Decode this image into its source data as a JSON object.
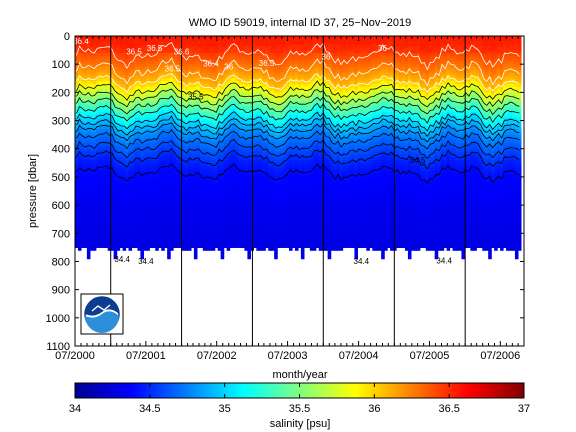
{
  "chart_data": {
    "type": "heatmap",
    "title": "WMO ID 59019, internal ID 37, 25−Nov−2019",
    "xlabel": "month/year",
    "ylabel": "pressure [dbar]",
    "x_ticks": [
      "07/2000",
      "07/2001",
      "07/2002",
      "07/2003",
      "07/2004",
      "07/2005",
      "07/2006"
    ],
    "x_range": [
      "2000-07-01",
      "2006-10-31"
    ],
    "y_ticks": [
      0,
      100,
      200,
      300,
      400,
      500,
      600,
      700,
      800,
      900,
      1000,
      1100
    ],
    "ylim": [
      1100,
      0
    ],
    "y_reversed": true,
    "colorbar": {
      "label": "salinity [psu]",
      "range": [
        34,
        37
      ],
      "ticks": [
        "34",
        "34.5",
        "35",
        "35.5",
        "36",
        "36.5",
        "37"
      ],
      "colormap": "jet"
    },
    "data_extent": {
      "x_start": "2000-07-01",
      "x_end": "2006-10-15",
      "max_pressure_dbar": 790
    },
    "vertical_markers": [
      "2001-01-01",
      "2002-01-01",
      "2003-01-01",
      "2004-01-01",
      "2005-01-01",
      "2006-01-01"
    ],
    "salinity_profile": [
      {
        "pressure": 0,
        "salinity": 36.55
      },
      {
        "pressure": 50,
        "salinity": 36.45
      },
      {
        "pressure": 100,
        "salinity": 36.3
      },
      {
        "pressure": 150,
        "salinity": 36.1
      },
      {
        "pressure": 200,
        "salinity": 35.75
      },
      {
        "pressure": 250,
        "salinity": 35.35
      },
      {
        "pressure": 300,
        "salinity": 35.0
      },
      {
        "pressure": 350,
        "salinity": 34.75
      },
      {
        "pressure": 400,
        "salinity": 34.6
      },
      {
        "pressure": 450,
        "salinity": 34.45
      },
      {
        "pressure": 500,
        "salinity": 34.38
      },
      {
        "pressure": 600,
        "salinity": 34.33
      },
      {
        "pressure": 700,
        "salinity": 34.3
      },
      {
        "pressure": 790,
        "salinity": 34.3
      }
    ],
    "contour_labels": [
      {
        "text": "36.4",
        "date": "2000-08-01",
        "pressure": 18
      },
      {
        "text": "36.5",
        "date": "2001-05-01",
        "pressure": 55
      },
      {
        "text": "36.5",
        "date": "2001-08-15",
        "pressure": 42
      },
      {
        "text": "36.5",
        "date": "2001-11-15",
        "pressure": 115
      },
      {
        "text": "36.6",
        "date": "2002-01-01",
        "pressure": 55
      },
      {
        "text": "35.5",
        "date": "2002-03-15",
        "pressure": 215
      },
      {
        "text": "36.4",
        "date": "2002-06-01",
        "pressure": 98
      },
      {
        "text": "36",
        "date": "2002-09-01",
        "pressure": 108
      },
      {
        "text": "36.5",
        "date": "2003-03-15",
        "pressure": 95
      },
      {
        "text": "36",
        "date": "2004-01-15",
        "pressure": 72
      },
      {
        "text": "36",
        "date": "2004-11-01",
        "pressure": 42
      },
      {
        "text": "34.5",
        "date": "2005-05-01",
        "pressure": 440
      },
      {
        "text": "34.4",
        "date": "2001-03-01",
        "pressure": 792
      },
      {
        "text": "34.4",
        "date": "2001-07-01",
        "pressure": 798
      },
      {
        "text": "34.4",
        "date": "2004-07-15",
        "pressure": 798
      },
      {
        "text": "34.4",
        "date": "2005-09-15",
        "pressure": 796
      }
    ],
    "logo": "noaa-logo"
  }
}
